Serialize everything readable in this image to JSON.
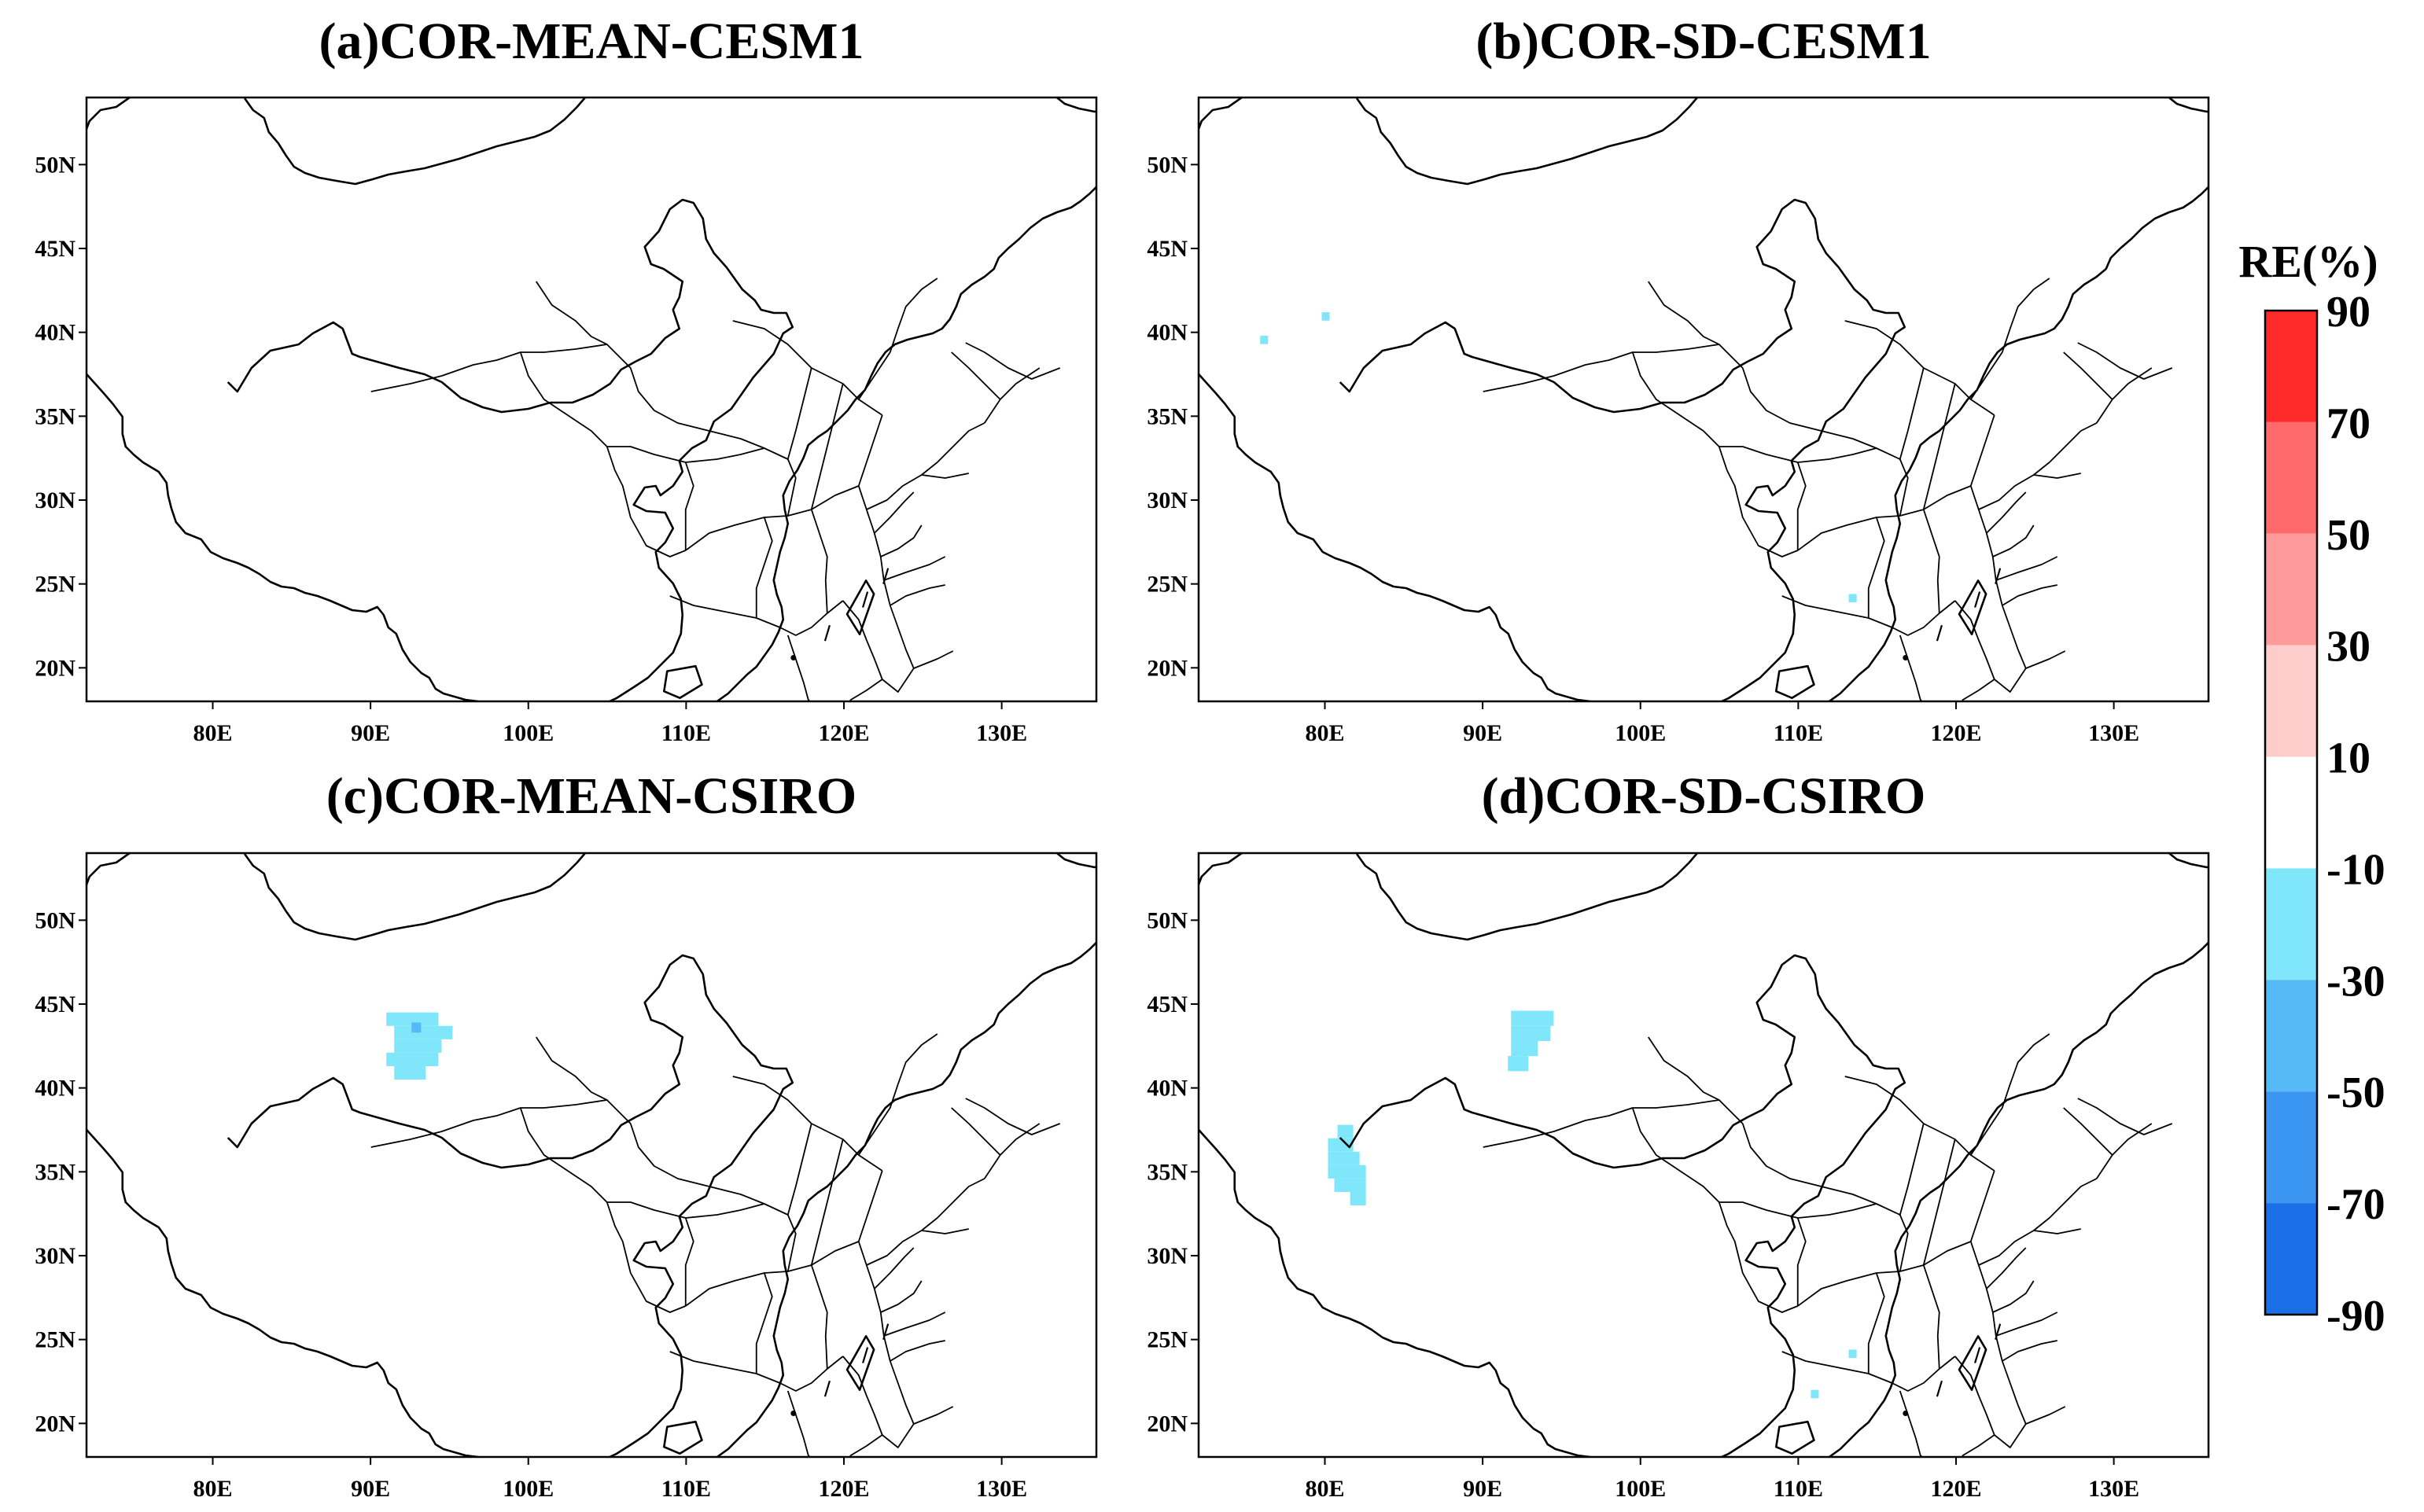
{
  "legend": {
    "title": "RE(%)",
    "levels": [
      "90",
      "70",
      "50",
      "30",
      "10",
      "-10",
      "-30",
      "-50",
      "-70",
      "-90"
    ],
    "bins": [
      {
        "from": 70,
        "to": 90,
        "color": "#ff2a2a"
      },
      {
        "from": 50,
        "to": 70,
        "color": "#ff6a6a"
      },
      {
        "from": 30,
        "to": 50,
        "color": "#ff9a9a"
      },
      {
        "from": 10,
        "to": 30,
        "color": "#ffcccc"
      },
      {
        "from": -10,
        "to": 10,
        "color": "#ffffff"
      },
      {
        "from": -30,
        "to": -10,
        "color": "#80e6fa"
      },
      {
        "from": -50,
        "to": -30,
        "color": "#55baf5"
      },
      {
        "from": -70,
        "to": -50,
        "color": "#3a96f0"
      },
      {
        "from": -90,
        "to": -70,
        "color": "#1a6ee8"
      }
    ]
  },
  "axes": {
    "x_ticks": [
      "80E",
      "90E",
      "100E",
      "110E",
      "120E",
      "130E"
    ],
    "y_ticks": [
      "50N",
      "45N",
      "40N",
      "35N",
      "30N",
      "25N",
      "20N"
    ],
    "lon_range": [
      72,
      136
    ],
    "lat_range": [
      18,
      54
    ]
  },
  "panels": [
    {
      "id": "a",
      "title": "(a)COR-MEAN-CESM1",
      "cells": []
    },
    {
      "id": "b",
      "title": "(b)COR-SD-CESM1",
      "cells": [
        {
          "lon": 75.9,
          "lat": 39.8,
          "w": 0.5,
          "h": 0.5,
          "bin": "-30..-10"
        },
        {
          "lon": 79.8,
          "lat": 41.2,
          "w": 0.5,
          "h": 0.5,
          "bin": "-30..-10"
        },
        {
          "lon": 113.2,
          "lat": 24.4,
          "w": 0.5,
          "h": 0.5,
          "bin": "-30..-10"
        }
      ]
    },
    {
      "id": "c",
      "title": "(c)COR-MEAN-CSIRO",
      "cells": [
        {
          "lon": 91.0,
          "lat": 44.5,
          "w": 3.3,
          "h": 0.8,
          "bin": "-30..-10"
        },
        {
          "lon": 91.5,
          "lat": 43.7,
          "w": 3.7,
          "h": 0.8,
          "bin": "-30..-10"
        },
        {
          "lon": 91.5,
          "lat": 42.9,
          "w": 3.0,
          "h": 0.8,
          "bin": "-30..-10"
        },
        {
          "lon": 91.0,
          "lat": 42.1,
          "w": 3.3,
          "h": 0.8,
          "bin": "-30..-10"
        },
        {
          "lon": 91.5,
          "lat": 41.3,
          "w": 2.0,
          "h": 0.8,
          "bin": "-30..-10"
        },
        {
          "lon": 92.6,
          "lat": 43.9,
          "w": 0.6,
          "h": 0.6,
          "bin": "-50..-30"
        }
      ]
    },
    {
      "id": "d",
      "title": "(d)COR-SD-CSIRO",
      "cells": [
        {
          "lon": 91.8,
          "lat": 44.6,
          "w": 2.7,
          "h": 0.9,
          "bin": "-30..-10"
        },
        {
          "lon": 91.8,
          "lat": 43.7,
          "w": 2.5,
          "h": 0.9,
          "bin": "-30..-10"
        },
        {
          "lon": 91.8,
          "lat": 42.8,
          "w": 1.7,
          "h": 0.9,
          "bin": "-30..-10"
        },
        {
          "lon": 91.6,
          "lat": 41.9,
          "w": 1.3,
          "h": 0.9,
          "bin": "-30..-10"
        },
        {
          "lon": 80.8,
          "lat": 37.8,
          "w": 1.0,
          "h": 0.8,
          "bin": "-30..-10"
        },
        {
          "lon": 80.2,
          "lat": 37.0,
          "w": 1.6,
          "h": 0.8,
          "bin": "-30..-10"
        },
        {
          "lon": 80.2,
          "lat": 36.2,
          "w": 2.0,
          "h": 0.8,
          "bin": "-30..-10"
        },
        {
          "lon": 80.2,
          "lat": 35.4,
          "w": 2.4,
          "h": 0.8,
          "bin": "-30..-10"
        },
        {
          "lon": 80.6,
          "lat": 34.6,
          "w": 2.0,
          "h": 0.8,
          "bin": "-30..-10"
        },
        {
          "lon": 81.6,
          "lat": 33.8,
          "w": 1.0,
          "h": 0.8,
          "bin": "-30..-10"
        },
        {
          "lon": 113.2,
          "lat": 24.4,
          "w": 0.5,
          "h": 0.5,
          "bin": "-30..-10"
        },
        {
          "lon": 110.8,
          "lat": 22.0,
          "w": 0.5,
          "h": 0.5,
          "bin": "-30..-10"
        }
      ]
    }
  ]
}
